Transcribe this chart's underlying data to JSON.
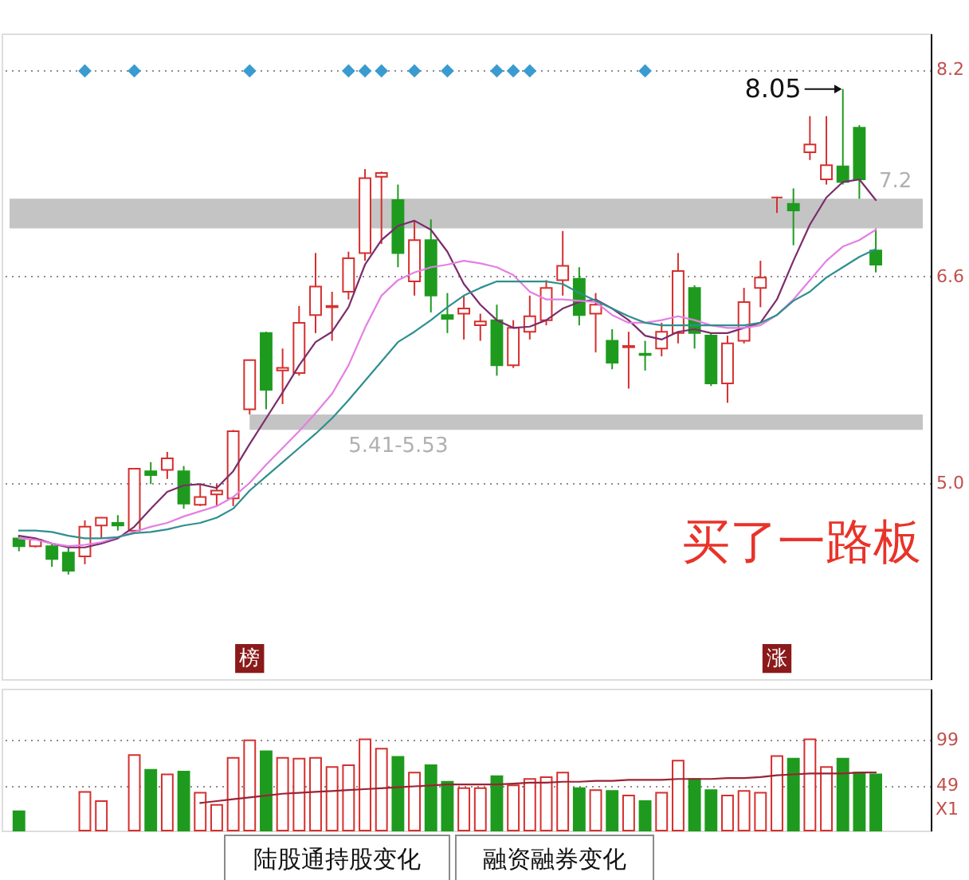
{
  "chart_data": [
    {
      "type": "candlestick",
      "categories": [
        null,
        null,
        null,
        null,
        null,
        null,
        null,
        null,
        null,
        null,
        null,
        null,
        null,
        null,
        null,
        null,
        null,
        null,
        null,
        null,
        null,
        null,
        null,
        null,
        null,
        null,
        null,
        null,
        null,
        null,
        null,
        null,
        null,
        null,
        null,
        null,
        null,
        null,
        null,
        null,
        null,
        null,
        null,
        null,
        null,
        null,
        null,
        null,
        null,
        null,
        null,
        null,
        null
      ],
      "ohlc": [
        [
          4.57,
          4.59,
          4.47,
          4.51
        ],
        [
          4.51,
          4.57,
          4.5,
          4.56
        ],
        [
          4.51,
          4.53,
          4.35,
          4.41
        ],
        [
          4.46,
          4.5,
          4.29,
          4.32
        ],
        [
          4.43,
          4.71,
          4.37,
          4.66
        ],
        [
          4.67,
          4.73,
          4.57,
          4.73
        ],
        [
          4.69,
          4.75,
          4.63,
          4.67
        ],
        [
          4.63,
          5.11,
          4.62,
          5.11
        ],
        [
          5.09,
          5.16,
          4.99,
          5.06
        ],
        [
          5.1,
          5.24,
          5.03,
          5.19
        ],
        [
          5.09,
          5.13,
          4.8,
          4.84
        ],
        [
          4.83,
          4.99,
          4.82,
          4.89
        ],
        [
          4.91,
          4.99,
          4.82,
          4.94
        ],
        [
          4.88,
          5.41,
          4.82,
          5.4
        ],
        [
          5.57,
          5.95,
          5.53,
          5.95
        ],
        [
          6.16,
          6.17,
          5.57,
          5.72
        ],
        [
          5.87,
          6.04,
          5.61,
          5.89
        ],
        [
          5.85,
          6.37,
          5.83,
          6.24
        ],
        [
          6.3,
          6.78,
          6.16,
          6.52
        ],
        [
          6.36,
          6.48,
          6.1,
          6.37
        ],
        [
          6.48,
          6.79,
          6.42,
          6.74
        ],
        [
          6.78,
          7.43,
          6.72,
          7.36
        ],
        [
          7.37,
          7.41,
          6.85,
          7.4
        ],
        [
          7.19,
          7.31,
          6.67,
          6.78
        ],
        [
          6.56,
          7.03,
          6.45,
          6.88
        ],
        [
          6.88,
          7.04,
          6.32,
          6.45
        ],
        [
          6.3,
          6.47,
          6.16,
          6.27
        ],
        [
          6.31,
          6.45,
          6.11,
          6.35
        ],
        [
          6.22,
          6.31,
          6.1,
          6.25
        ],
        [
          6.26,
          6.38,
          5.83,
          5.91
        ],
        [
          5.91,
          6.26,
          5.89,
          6.2
        ],
        [
          6.17,
          6.45,
          6.11,
          6.29
        ],
        [
          6.26,
          6.57,
          6.22,
          6.51
        ],
        [
          6.57,
          6.95,
          6.45,
          6.68
        ],
        [
          6.58,
          6.67,
          6.22,
          6.3
        ],
        [
          6.31,
          6.47,
          6.01,
          6.38
        ],
        [
          6.1,
          6.19,
          5.88,
          5.93
        ],
        [
          6.05,
          6.17,
          5.73,
          6.06
        ],
        [
          6.0,
          6.1,
          5.87,
          5.99
        ],
        [
          6.04,
          6.24,
          5.98,
          6.17
        ],
        [
          6.16,
          6.78,
          6.08,
          6.64
        ],
        [
          6.51,
          6.53,
          6.04,
          6.16
        ],
        [
          6.14,
          6.16,
          5.75,
          5.77
        ],
        [
          5.77,
          6.14,
          5.62,
          6.08
        ],
        [
          6.1,
          6.51,
          6.08,
          6.4
        ],
        [
          6.51,
          6.72,
          6.36,
          6.59
        ],
        [
          7.21,
          7.21,
          7.09,
          7.21
        ],
        [
          7.16,
          7.28,
          6.84,
          7.11
        ],
        [
          7.56,
          7.84,
          7.5,
          7.62
        ],
        [
          7.35,
          7.84,
          7.31,
          7.46
        ],
        [
          7.45,
          8.05,
          7.31,
          7.33
        ],
        [
          7.75,
          7.77,
          7.2,
          7.35
        ],
        [
          6.8,
          6.97,
          6.63,
          6.69
        ]
      ],
      "colors": [
        "#1e9b1e",
        "#d62f2f",
        "#1e9b1e",
        "#1e9b1e",
        "#d62f2f",
        "#d62f2f",
        "#1e9b1e",
        "#d62f2f",
        "#1e9b1e",
        "#d62f2f",
        "#1e9b1e",
        "#d62f2f",
        "#d62f2f",
        "#d62f2f",
        "#d62f2f",
        "#1e9b1e",
        "#d62f2f",
        "#d62f2f",
        "#d62f2f",
        "#d62f2f",
        "#d62f2f",
        "#d62f2f",
        "#d62f2f",
        "#1e9b1e",
        "#d62f2f",
        "#1e9b1e",
        "#1e9b1e",
        "#d62f2f",
        "#d62f2f",
        "#1e9b1e",
        "#d62f2f",
        "#d62f2f",
        "#d62f2f",
        "#d62f2f",
        "#1e9b1e",
        "#d62f2f",
        "#1e9b1e",
        "#d62f2f",
        "#1e9b1e",
        "#d62f2f",
        "#d62f2f",
        "#1e9b1e",
        "#1e9b1e",
        "#d62f2f",
        "#d62f2f",
        "#d62f2f",
        "#d62f2f",
        "#1e9b1e",
        "#d62f2f",
        "#d62f2f",
        "#1e9b1e",
        "#1e9b1e",
        "#1e9b1e"
      ],
      "series": [
        {
          "type": "line",
          "color": "#7b2d6b",
          "values": [
            4.59,
            4.57,
            4.53,
            4.5,
            4.5,
            4.53,
            4.57,
            4.66,
            4.8,
            4.93,
            4.98,
            4.99,
            4.96,
            5.09,
            5.3,
            5.5,
            5.7,
            5.91,
            6.09,
            6.17,
            6.36,
            6.69,
            6.88,
            6.99,
            7.03,
            6.96,
            6.79,
            6.54,
            6.38,
            6.26,
            6.2,
            6.21,
            6.26,
            6.35,
            6.4,
            6.42,
            6.35,
            6.26,
            6.14,
            6.11,
            6.17,
            6.19,
            6.16,
            6.16,
            6.2,
            6.24,
            6.42,
            6.72,
            7.0,
            7.21,
            7.33,
            7.35,
            7.19
          ]
        },
        {
          "type": "line",
          "color": "#e47fe4",
          "values": [
            4.57,
            4.56,
            4.53,
            4.51,
            4.52,
            4.54,
            4.58,
            4.62,
            4.66,
            4.69,
            4.74,
            4.78,
            4.82,
            4.89,
            5.0,
            5.14,
            5.27,
            5.4,
            5.54,
            5.69,
            5.91,
            6.2,
            6.45,
            6.57,
            6.63,
            6.67,
            6.69,
            6.72,
            6.7,
            6.67,
            6.61,
            6.48,
            6.42,
            6.42,
            6.41,
            6.4,
            6.3,
            6.24,
            6.24,
            6.26,
            6.29,
            6.26,
            6.22,
            6.2,
            6.2,
            6.22,
            6.3,
            6.42,
            6.57,
            6.72,
            6.83,
            6.88,
            6.96
          ]
        },
        {
          "type": "line",
          "color": "#2f8f8f",
          "values": [
            4.63,
            4.63,
            4.62,
            4.59,
            4.57,
            4.57,
            4.58,
            4.61,
            4.62,
            4.64,
            4.67,
            4.69,
            4.73,
            4.8,
            4.94,
            5.05,
            5.16,
            5.27,
            5.38,
            5.5,
            5.64,
            5.79,
            5.94,
            6.09,
            6.17,
            6.26,
            6.36,
            6.45,
            6.51,
            6.56,
            6.56,
            6.56,
            6.56,
            6.54,
            6.47,
            6.41,
            6.35,
            6.29,
            6.24,
            6.22,
            6.22,
            6.22,
            6.22,
            6.22,
            6.22,
            6.24,
            6.3,
            6.41,
            6.48,
            6.59,
            6.67,
            6.75,
            6.81
          ]
        },
        {
          "type": "scatter",
          "marker": "diamond",
          "color": "#3a9bd0",
          "values": [
            null,
            null,
            null,
            null,
            8.19,
            null,
            null,
            8.19,
            null,
            null,
            null,
            null,
            null,
            null,
            8.19,
            null,
            null,
            null,
            null,
            null,
            8.19,
            8.19,
            8.19,
            null,
            8.19,
            null,
            8.19,
            null,
            null,
            8.19,
            8.19,
            8.19,
            null,
            null,
            null,
            null,
            null,
            null,
            8.19,
            null,
            null,
            null,
            null,
            null,
            null,
            null,
            null,
            null,
            null,
            null,
            null,
            null,
            null
          ]
        },
        {
          "type": "scatter",
          "marker": "square",
          "color": "#8b1a1a",
          "values": [
            null,
            null,
            null,
            null,
            null,
            null,
            null,
            null,
            null,
            null,
            null,
            null,
            null,
            null,
            3.64,
            null,
            null,
            null,
            null,
            null,
            null,
            null,
            null,
            null,
            null,
            null,
            null,
            null,
            null,
            null,
            null,
            null,
            null,
            null,
            null,
            null,
            null,
            null,
            null,
            null,
            null,
            null,
            null,
            null,
            null,
            null,
            3.64,
            null,
            null,
            null,
            null,
            null,
            null
          ],
          "value_labels": [
            null,
            null,
            null,
            null,
            null,
            null,
            null,
            null,
            null,
            null,
            null,
            null,
            null,
            null,
            "榜",
            null,
            null,
            null,
            null,
            null,
            null,
            null,
            null,
            null,
            null,
            null,
            null,
            null,
            null,
            null,
            null,
            null,
            null,
            null,
            null,
            null,
            null,
            null,
            null,
            null,
            null,
            null,
            null,
            null,
            null,
            null,
            "涨",
            null,
            null,
            null,
            null,
            null,
            null
          ]
        },
        {
          "type": "scatter",
          "marker": "triangle",
          "color": "#111111",
          "values": [
            null,
            null,
            null,
            null,
            null,
            null,
            null,
            null,
            null,
            null,
            null,
            null,
            null,
            null,
            null,
            null,
            null,
            null,
            null,
            null,
            null,
            null,
            null,
            null,
            null,
            null,
            null,
            null,
            null,
            null,
            null,
            null,
            null,
            null,
            null,
            null,
            null,
            null,
            null,
            null,
            null,
            null,
            null,
            null,
            null,
            null,
            null,
            null,
            null,
            null,
            8.05,
            null,
            null
          ],
          "value_labels": [
            null,
            null,
            null,
            null,
            null,
            null,
            null,
            null,
            null,
            null,
            null,
            null,
            null,
            null,
            null,
            null,
            null,
            null,
            null,
            null,
            null,
            null,
            null,
            null,
            null,
            null,
            null,
            null,
            null,
            null,
            null,
            null,
            null,
            null,
            null,
            null,
            null,
            null,
            null,
            null,
            null,
            null,
            null,
            null,
            null,
            null,
            null,
            null,
            null,
            null,
            "8.05",
            null,
            null
          ]
        }
      ],
      "ylim": [
        3.48,
        8.48
      ],
      "yticks": [
        {
          "value": 5,
          "label": "5.0"
        },
        6.6,
        8.2
      ],
      "grid": "y",
      "tick_labels": "y",
      "bands": [
        {
          "axis": "y",
          "from": 5.41,
          "to": 5.53,
          "label": "5.41-5.53",
          "color": "#c4c4c4"
        },
        {
          "axis": "y",
          "from": 6.97,
          "to": 7.2,
          "label": "7.2",
          "color": "#c4c4c4"
        }
      ],
      "annotations": [
        "买了一路板"
      ]
    },
    {
      "type": "bar",
      "categories": [
        null,
        null,
        null,
        null,
        null,
        null,
        null,
        null,
        null,
        null,
        null,
        null,
        null,
        null,
        null,
        null,
        null,
        null,
        null,
        null,
        null,
        null,
        null,
        null,
        null,
        null,
        null,
        null,
        null,
        null,
        null,
        null,
        null,
        null,
        null,
        null,
        null,
        null,
        null,
        null,
        null,
        null,
        null,
        null,
        null,
        null,
        null,
        null,
        null,
        null,
        null,
        null,
        null
      ],
      "series": [
        {
          "type": "bar",
          "values": [
            21,
            null,
            null,
            null,
            42,
            32,
            null,
            82,
            66,
            61,
            64,
            41,
            28,
            79,
            98,
            86,
            79,
            78,
            79,
            69,
            71,
            99,
            89,
            80,
            63,
            71,
            53,
            46,
            46,
            59,
            49,
            56,
            58,
            63,
            46,
            44,
            43,
            38,
            32,
            41,
            76,
            56,
            44,
            38,
            43,
            41,
            81,
            78,
            99,
            69,
            78,
            63,
            61
          ],
          "colors": [
            "#1e9b1e",
            "#d62f2f",
            "#1e9b1e",
            "#1e9b1e",
            "#d62f2f",
            "#d62f2f",
            "#1e9b1e",
            "#d62f2f",
            "#1e9b1e",
            "#d62f2f",
            "#1e9b1e",
            "#d62f2f",
            "#d62f2f",
            "#d62f2f",
            "#d62f2f",
            "#1e9b1e",
            "#d62f2f",
            "#d62f2f",
            "#d62f2f",
            "#d62f2f",
            "#d62f2f",
            "#d62f2f",
            "#d62f2f",
            "#1e9b1e",
            "#d62f2f",
            "#1e9b1e",
            "#1e9b1e",
            "#d62f2f",
            "#d62f2f",
            "#1e9b1e",
            "#d62f2f",
            "#d62f2f",
            "#d62f2f",
            "#d62f2f",
            "#1e9b1e",
            "#d62f2f",
            "#1e9b1e",
            "#d62f2f",
            "#1e9b1e",
            "#d62f2f",
            "#d62f2f",
            "#1e9b1e",
            "#1e9b1e",
            "#d62f2f",
            "#d62f2f",
            "#d62f2f",
            "#d62f2f",
            "#1e9b1e",
            "#d62f2f",
            "#d62f2f",
            "#1e9b1e",
            "#1e9b1e",
            "#1e9b1e"
          ]
        },
        {
          "type": "line",
          "color": "#9b2335",
          "values": [
            null,
            null,
            null,
            null,
            null,
            null,
            null,
            null,
            null,
            null,
            null,
            30,
            32,
            34,
            36,
            38,
            40,
            41,
            42,
            43,
            44,
            45,
            46,
            47,
            48,
            49,
            50,
            50,
            50,
            50,
            51,
            52,
            52,
            53,
            53,
            54,
            54,
            55,
            55,
            55,
            56,
            56,
            56,
            57,
            57,
            58,
            60,
            61,
            62,
            62,
            62,
            63,
            63
          ]
        }
      ],
      "ylim": [
        0,
        154
      ],
      "yticks": [
        49,
        99
      ],
      "ylabel": "X1",
      "grid": "y",
      "tick_labels": "y",
      "annotations": [
        "陆股通持股变化",
        "融资融券变化"
      ]
    }
  ]
}
